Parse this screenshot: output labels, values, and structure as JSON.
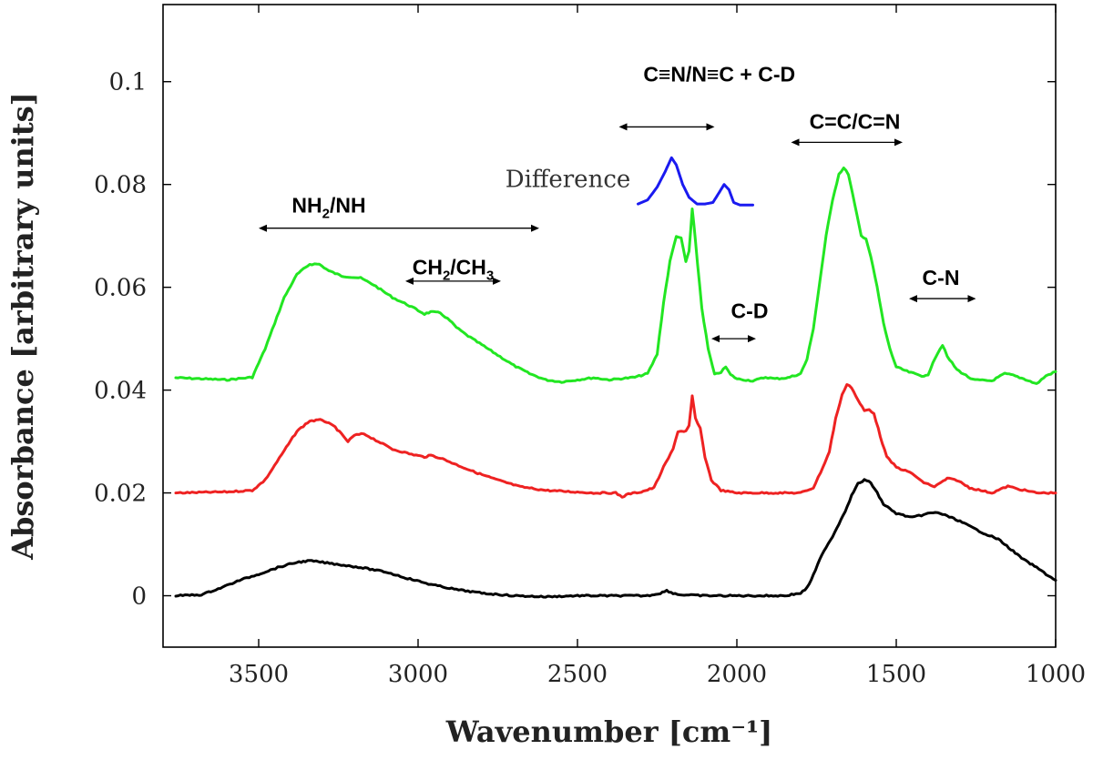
{
  "chart_data": {
    "type": "line",
    "xlabel": "Wavenumber [cm⁻¹]",
    "ylabel": "Absorbance [arbitrary units]",
    "xlim": [
      3800,
      1000
    ],
    "ylim": [
      -0.01,
      0.115
    ],
    "x_reversed": true,
    "grid": false,
    "x_ticks": [
      3500,
      3000,
      2500,
      2000,
      1500,
      1000
    ],
    "y_ticks": [
      0,
      0.02,
      0.04,
      0.06,
      0.08,
      0.1
    ],
    "y_tick_labels": [
      "0",
      "0.02",
      "0.04",
      "0.06",
      "0.08",
      "0.1"
    ],
    "series": [
      {
        "color": "#22e622",
        "points": [
          [
            3760,
            0.0424
          ],
          [
            3600,
            0.042
          ],
          [
            3520,
            0.0425
          ],
          [
            3480,
            0.048
          ],
          [
            3420,
            0.058
          ],
          [
            3380,
            0.0625
          ],
          [
            3340,
            0.0645
          ],
          [
            3310,
            0.0645
          ],
          [
            3280,
            0.0632
          ],
          [
            3240,
            0.0622
          ],
          [
            3180,
            0.0618
          ],
          [
            3140,
            0.0605
          ],
          [
            3080,
            0.058
          ],
          [
            3020,
            0.0562
          ],
          [
            2980,
            0.0548
          ],
          [
            2960,
            0.0552
          ],
          [
            2930,
            0.055
          ],
          [
            2900,
            0.0535
          ],
          [
            2880,
            0.0522
          ],
          [
            2850,
            0.0508
          ],
          [
            2800,
            0.0488
          ],
          [
            2750,
            0.0468
          ],
          [
            2700,
            0.0448
          ],
          [
            2650,
            0.0432
          ],
          [
            2600,
            0.042
          ],
          [
            2550,
            0.0416
          ],
          [
            2500,
            0.042
          ],
          [
            2450,
            0.0424
          ],
          [
            2400,
            0.042
          ],
          [
            2320,
            0.0425
          ],
          [
            2280,
            0.0432
          ],
          [
            2250,
            0.047
          ],
          [
            2230,
            0.057
          ],
          [
            2210,
            0.065
          ],
          [
            2190,
            0.07
          ],
          [
            2175,
            0.0695
          ],
          [
            2160,
            0.065
          ],
          [
            2150,
            0.067
          ],
          [
            2140,
            0.0752
          ],
          [
            2130,
            0.069
          ],
          [
            2110,
            0.056
          ],
          [
            2090,
            0.048
          ],
          [
            2070,
            0.043
          ],
          [
            2050,
            0.0435
          ],
          [
            2035,
            0.0445
          ],
          [
            2020,
            0.043
          ],
          [
            2000,
            0.0422
          ],
          [
            1950,
            0.0418
          ],
          [
            1910,
            0.0425
          ],
          [
            1880,
            0.0422
          ],
          [
            1840,
            0.0424
          ],
          [
            1800,
            0.0432
          ],
          [
            1780,
            0.046
          ],
          [
            1760,
            0.052
          ],
          [
            1740,
            0.061
          ],
          [
            1720,
            0.07
          ],
          [
            1700,
            0.077
          ],
          [
            1680,
            0.082
          ],
          [
            1665,
            0.0832
          ],
          [
            1650,
            0.082
          ],
          [
            1630,
            0.076
          ],
          [
            1610,
            0.07
          ],
          [
            1595,
            0.0695
          ],
          [
            1580,
            0.066
          ],
          [
            1560,
            0.06
          ],
          [
            1540,
            0.053
          ],
          [
            1520,
            0.048
          ],
          [
            1500,
            0.0445
          ],
          [
            1460,
            0.0435
          ],
          [
            1420,
            0.0428
          ],
          [
            1400,
            0.0428
          ],
          [
            1385,
            0.0455
          ],
          [
            1370,
            0.0472
          ],
          [
            1355,
            0.0488
          ],
          [
            1340,
            0.0465
          ],
          [
            1310,
            0.044
          ],
          [
            1260,
            0.042
          ],
          [
            1200,
            0.0418
          ],
          [
            1160,
            0.0432
          ],
          [
            1140,
            0.043
          ],
          [
            1100,
            0.0422
          ],
          [
            1060,
            0.0412
          ],
          [
            1030,
            0.0428
          ],
          [
            1000,
            0.0436
          ]
        ]
      },
      {
        "color": "#ee2222",
        "points": [
          [
            3760,
            0.02
          ],
          [
            3600,
            0.0202
          ],
          [
            3520,
            0.0205
          ],
          [
            3480,
            0.0225
          ],
          [
            3420,
            0.0282
          ],
          [
            3380,
            0.032
          ],
          [
            3340,
            0.034
          ],
          [
            3300,
            0.0342
          ],
          [
            3260,
            0.0328
          ],
          [
            3220,
            0.03
          ],
          [
            3200,
            0.0312
          ],
          [
            3170,
            0.0315
          ],
          [
            3140,
            0.0305
          ],
          [
            3080,
            0.0285
          ],
          [
            3020,
            0.0275
          ],
          [
            2980,
            0.027
          ],
          [
            2960,
            0.0273
          ],
          [
            2930,
            0.0268
          ],
          [
            2880,
            0.0255
          ],
          [
            2820,
            0.024
          ],
          [
            2750,
            0.0225
          ],
          [
            2680,
            0.0212
          ],
          [
            2600,
            0.0205
          ],
          [
            2450,
            0.02
          ],
          [
            2380,
            0.02
          ],
          [
            2360,
            0.0192
          ],
          [
            2340,
            0.0198
          ],
          [
            2300,
            0.0202
          ],
          [
            2260,
            0.021
          ],
          [
            2230,
            0.025
          ],
          [
            2200,
            0.0285
          ],
          [
            2185,
            0.032
          ],
          [
            2160,
            0.032
          ],
          [
            2150,
            0.033
          ],
          [
            2140,
            0.0388
          ],
          [
            2130,
            0.0345
          ],
          [
            2115,
            0.0325
          ],
          [
            2100,
            0.027
          ],
          [
            2080,
            0.0225
          ],
          [
            2050,
            0.0205
          ],
          [
            2000,
            0.02
          ],
          [
            1900,
            0.02
          ],
          [
            1800,
            0.02
          ],
          [
            1760,
            0.021
          ],
          [
            1730,
            0.025
          ],
          [
            1710,
            0.028
          ],
          [
            1690,
            0.0345
          ],
          [
            1670,
            0.039
          ],
          [
            1655,
            0.0412
          ],
          [
            1640,
            0.0405
          ],
          [
            1620,
            0.038
          ],
          [
            1600,
            0.036
          ],
          [
            1585,
            0.0362
          ],
          [
            1570,
            0.0355
          ],
          [
            1550,
            0.031
          ],
          [
            1530,
            0.027
          ],
          [
            1500,
            0.025
          ],
          [
            1450,
            0.0238
          ],
          [
            1420,
            0.0222
          ],
          [
            1380,
            0.0212
          ],
          [
            1340,
            0.0228
          ],
          [
            1310,
            0.0225
          ],
          [
            1270,
            0.021
          ],
          [
            1200,
            0.02
          ],
          [
            1150,
            0.0213
          ],
          [
            1120,
            0.0208
          ],
          [
            1060,
            0.02
          ],
          [
            1000,
            0.02
          ]
        ]
      },
      {
        "color": "#000000",
        "points": [
          [
            3760,
            0.0
          ],
          [
            3680,
            0.0002
          ],
          [
            3620,
            0.0015
          ],
          [
            3560,
            0.003
          ],
          [
            3500,
            0.0042
          ],
          [
            3440,
            0.0055
          ],
          [
            3380,
            0.0065
          ],
          [
            3340,
            0.0068
          ],
          [
            3300,
            0.0065
          ],
          [
            3240,
            0.006
          ],
          [
            3180,
            0.0055
          ],
          [
            3100,
            0.0046
          ],
          [
            3040,
            0.0035
          ],
          [
            2960,
            0.0022
          ],
          [
            2880,
            0.0012
          ],
          [
            2800,
            0.0005
          ],
          [
            2700,
            0.0
          ],
          [
            2600,
            -0.0002
          ],
          [
            2500,
            0.0
          ],
          [
            2400,
            0.0
          ],
          [
            2280,
            0.0
          ],
          [
            2240,
            0.0005
          ],
          [
            2220,
            0.001
          ],
          [
            2200,
            0.0005
          ],
          [
            2180,
            0.0002
          ],
          [
            2100,
            0.0
          ],
          [
            1950,
            0.0
          ],
          [
            1850,
            0.0
          ],
          [
            1800,
            0.0005
          ],
          [
            1780,
            0.0015
          ],
          [
            1760,
            0.004
          ],
          [
            1740,
            0.007
          ],
          [
            1720,
            0.0095
          ],
          [
            1700,
            0.0115
          ],
          [
            1680,
            0.014
          ],
          [
            1660,
            0.0165
          ],
          [
            1640,
            0.0195
          ],
          [
            1620,
            0.0218
          ],
          [
            1600,
            0.0225
          ],
          [
            1580,
            0.022
          ],
          [
            1560,
            0.02
          ],
          [
            1540,
            0.0178
          ],
          [
            1500,
            0.016
          ],
          [
            1450,
            0.0152
          ],
          [
            1400,
            0.016
          ],
          [
            1370,
            0.0162
          ],
          [
            1340,
            0.0155
          ],
          [
            1300,
            0.0145
          ],
          [
            1260,
            0.0132
          ],
          [
            1220,
            0.012
          ],
          [
            1180,
            0.011
          ],
          [
            1140,
            0.009
          ],
          [
            1100,
            0.007
          ],
          [
            1060,
            0.0055
          ],
          [
            1030,
            0.0042
          ],
          [
            1000,
            0.003
          ]
        ]
      },
      {
        "color": "#1a1af0",
        "points": [
          [
            2310,
            0.0762
          ],
          [
            2280,
            0.077
          ],
          [
            2250,
            0.0795
          ],
          [
            2225,
            0.0825
          ],
          [
            2205,
            0.0852
          ],
          [
            2190,
            0.0838
          ],
          [
            2170,
            0.08
          ],
          [
            2150,
            0.0775
          ],
          [
            2125,
            0.0762
          ],
          [
            2100,
            0.0762
          ],
          [
            2075,
            0.0765
          ],
          [
            2055,
            0.0785
          ],
          [
            2040,
            0.08
          ],
          [
            2025,
            0.079
          ],
          [
            2010,
            0.0765
          ],
          [
            1990,
            0.076
          ],
          [
            1950,
            0.076
          ]
        ]
      }
    ],
    "annotations": [
      {
        "label": "NH",
        "sub": "2",
        "tail": "/NH",
        "x": 3280,
        "y": 0.0745,
        "arrow": [
          3500,
          2620
        ],
        "arrow_y": 0.0715
      },
      {
        "label": "CH",
        "sub": "2",
        "tail": "/CH",
        "sub2": "3",
        "x": 2890,
        "y": 0.0625,
        "arrow": [
          3040,
          2740
        ],
        "arrow_y": 0.0612
      },
      {
        "label": "C≡N/N≡C + C-D",
        "x": 2055,
        "y": 0.1,
        "arrow": [
          2370,
          2070
        ],
        "arrow_y": 0.0912
      },
      {
        "label": "C=C/C=N",
        "x": 1630,
        "y": 0.0908,
        "arrow": [
          1830,
          1480
        ],
        "arrow_y": 0.0882
      },
      {
        "label": "C-D",
        "x": 1960,
        "y": 0.054,
        "arrow": [
          2080,
          1940
        ],
        "arrow_y": 0.05
      },
      {
        "label": "C-N",
        "x": 1360,
        "y": 0.0605,
        "arrow": [
          1460,
          1250
        ],
        "arrow_y": 0.0578
      },
      {
        "label": "Difference",
        "x": 2530,
        "y": 0.0795,
        "style": "serif"
      }
    ]
  }
}
